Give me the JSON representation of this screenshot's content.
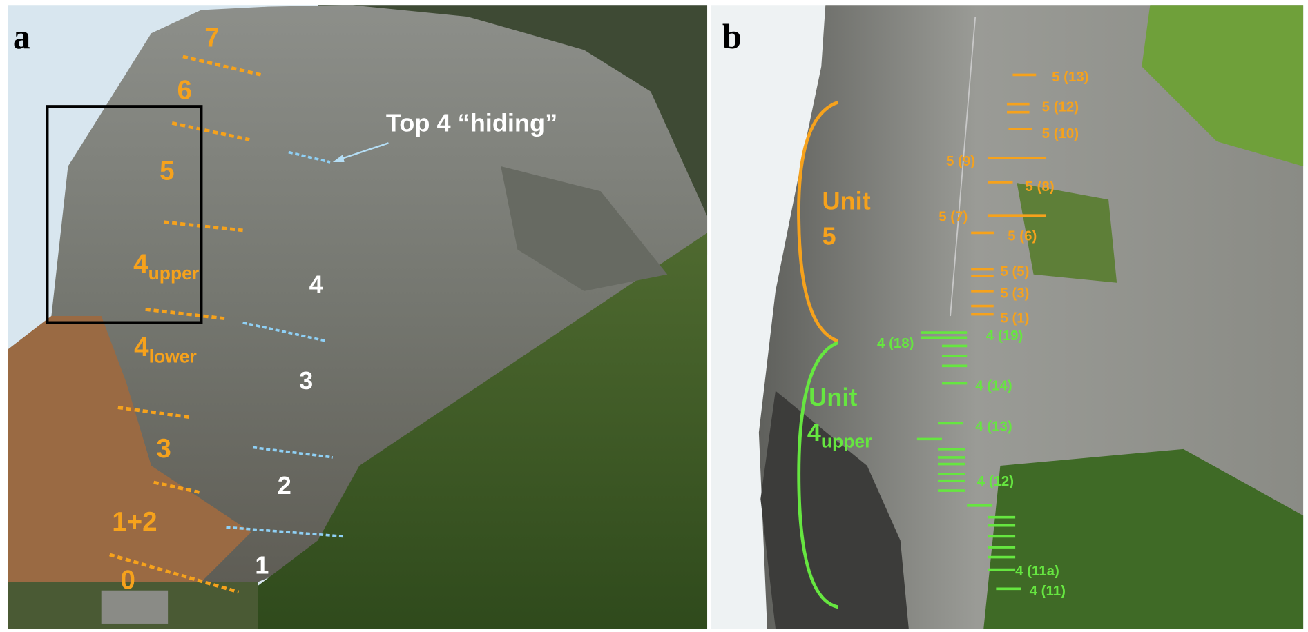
{
  "panel_a": {
    "letter": "a",
    "unit_labels": [
      "7",
      "6",
      "5",
      {
        "main": "4",
        "sub": "upper"
      },
      {
        "main": "4",
        "sub": "lower"
      },
      "3",
      "1+2",
      "0"
    ],
    "bed_labels": [
      "4",
      "3",
      "2",
      "1"
    ],
    "annotation": "Top 4 “hiding”"
  },
  "panel_b": {
    "letter": "b",
    "unit_5": {
      "word": "Unit",
      "number": "5"
    },
    "unit_4": {
      "word": "Unit",
      "main": "4",
      "sub": "upper"
    },
    "unit_5_samples": [
      "5 (13)",
      "5 (12)",
      "5 (10)",
      "5 (9)",
      "5 (8)",
      "5 (7)",
      "5 (6)",
      "5 (5)",
      "5 (3)",
      "5 (1)"
    ],
    "unit_4_samples": [
      "4 (19)",
      "4 (18)",
      "4 (14)",
      "4 (13)",
      "4 (12)",
      "4 (11a)",
      "4 (11)"
    ]
  }
}
